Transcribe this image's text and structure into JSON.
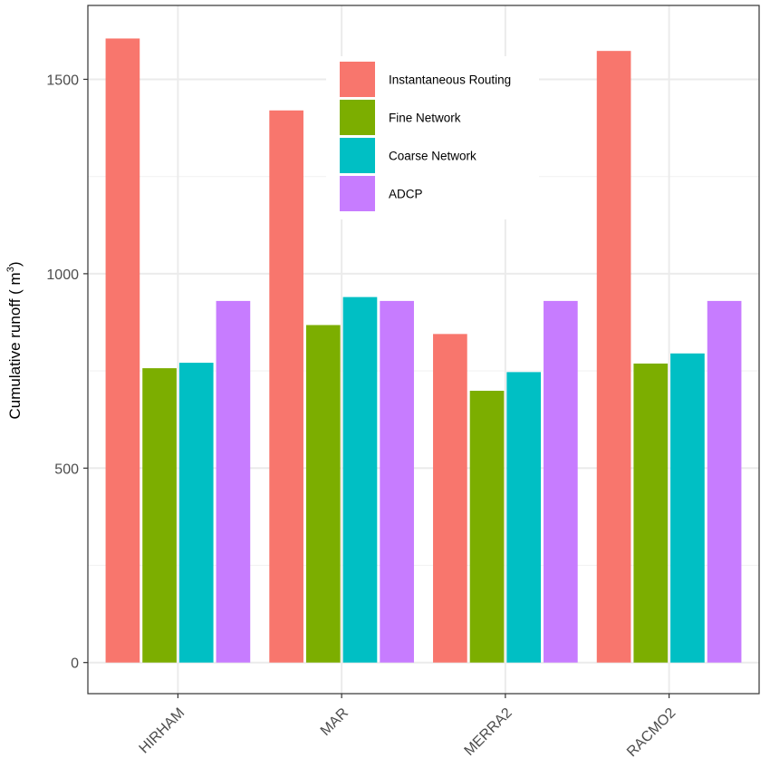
{
  "chart_data": {
    "type": "bar",
    "categories": [
      "HIRHAM",
      "MAR",
      "MERRA2",
      "RACMO2"
    ],
    "series": [
      {
        "name": "Instantaneous Routing",
        "color": "#F8766D",
        "values": [
          1605,
          1420,
          845,
          1573
        ]
      },
      {
        "name": "Fine Network",
        "color": "#7CAE00",
        "values": [
          757,
          868,
          699,
          769
        ]
      },
      {
        "name": "Coarse Network",
        "color": "#00BFC4",
        "values": [
          771,
          940,
          747,
          795
        ]
      },
      {
        "name": "ADCP",
        "color": "#C77CFF",
        "values": [
          930,
          930,
          930,
          930
        ]
      }
    ],
    "title": "",
    "xlabel": "",
    "ylabel": "Cumulative runoff ( m",
    "ylabel_superscript": "3",
    "ylabel_suffix": ")",
    "ylim": [
      -80,
      1690
    ],
    "yticks": [
      0,
      500,
      1000,
      1500
    ],
    "grid": true,
    "legend_position": "inside-top-center"
  }
}
